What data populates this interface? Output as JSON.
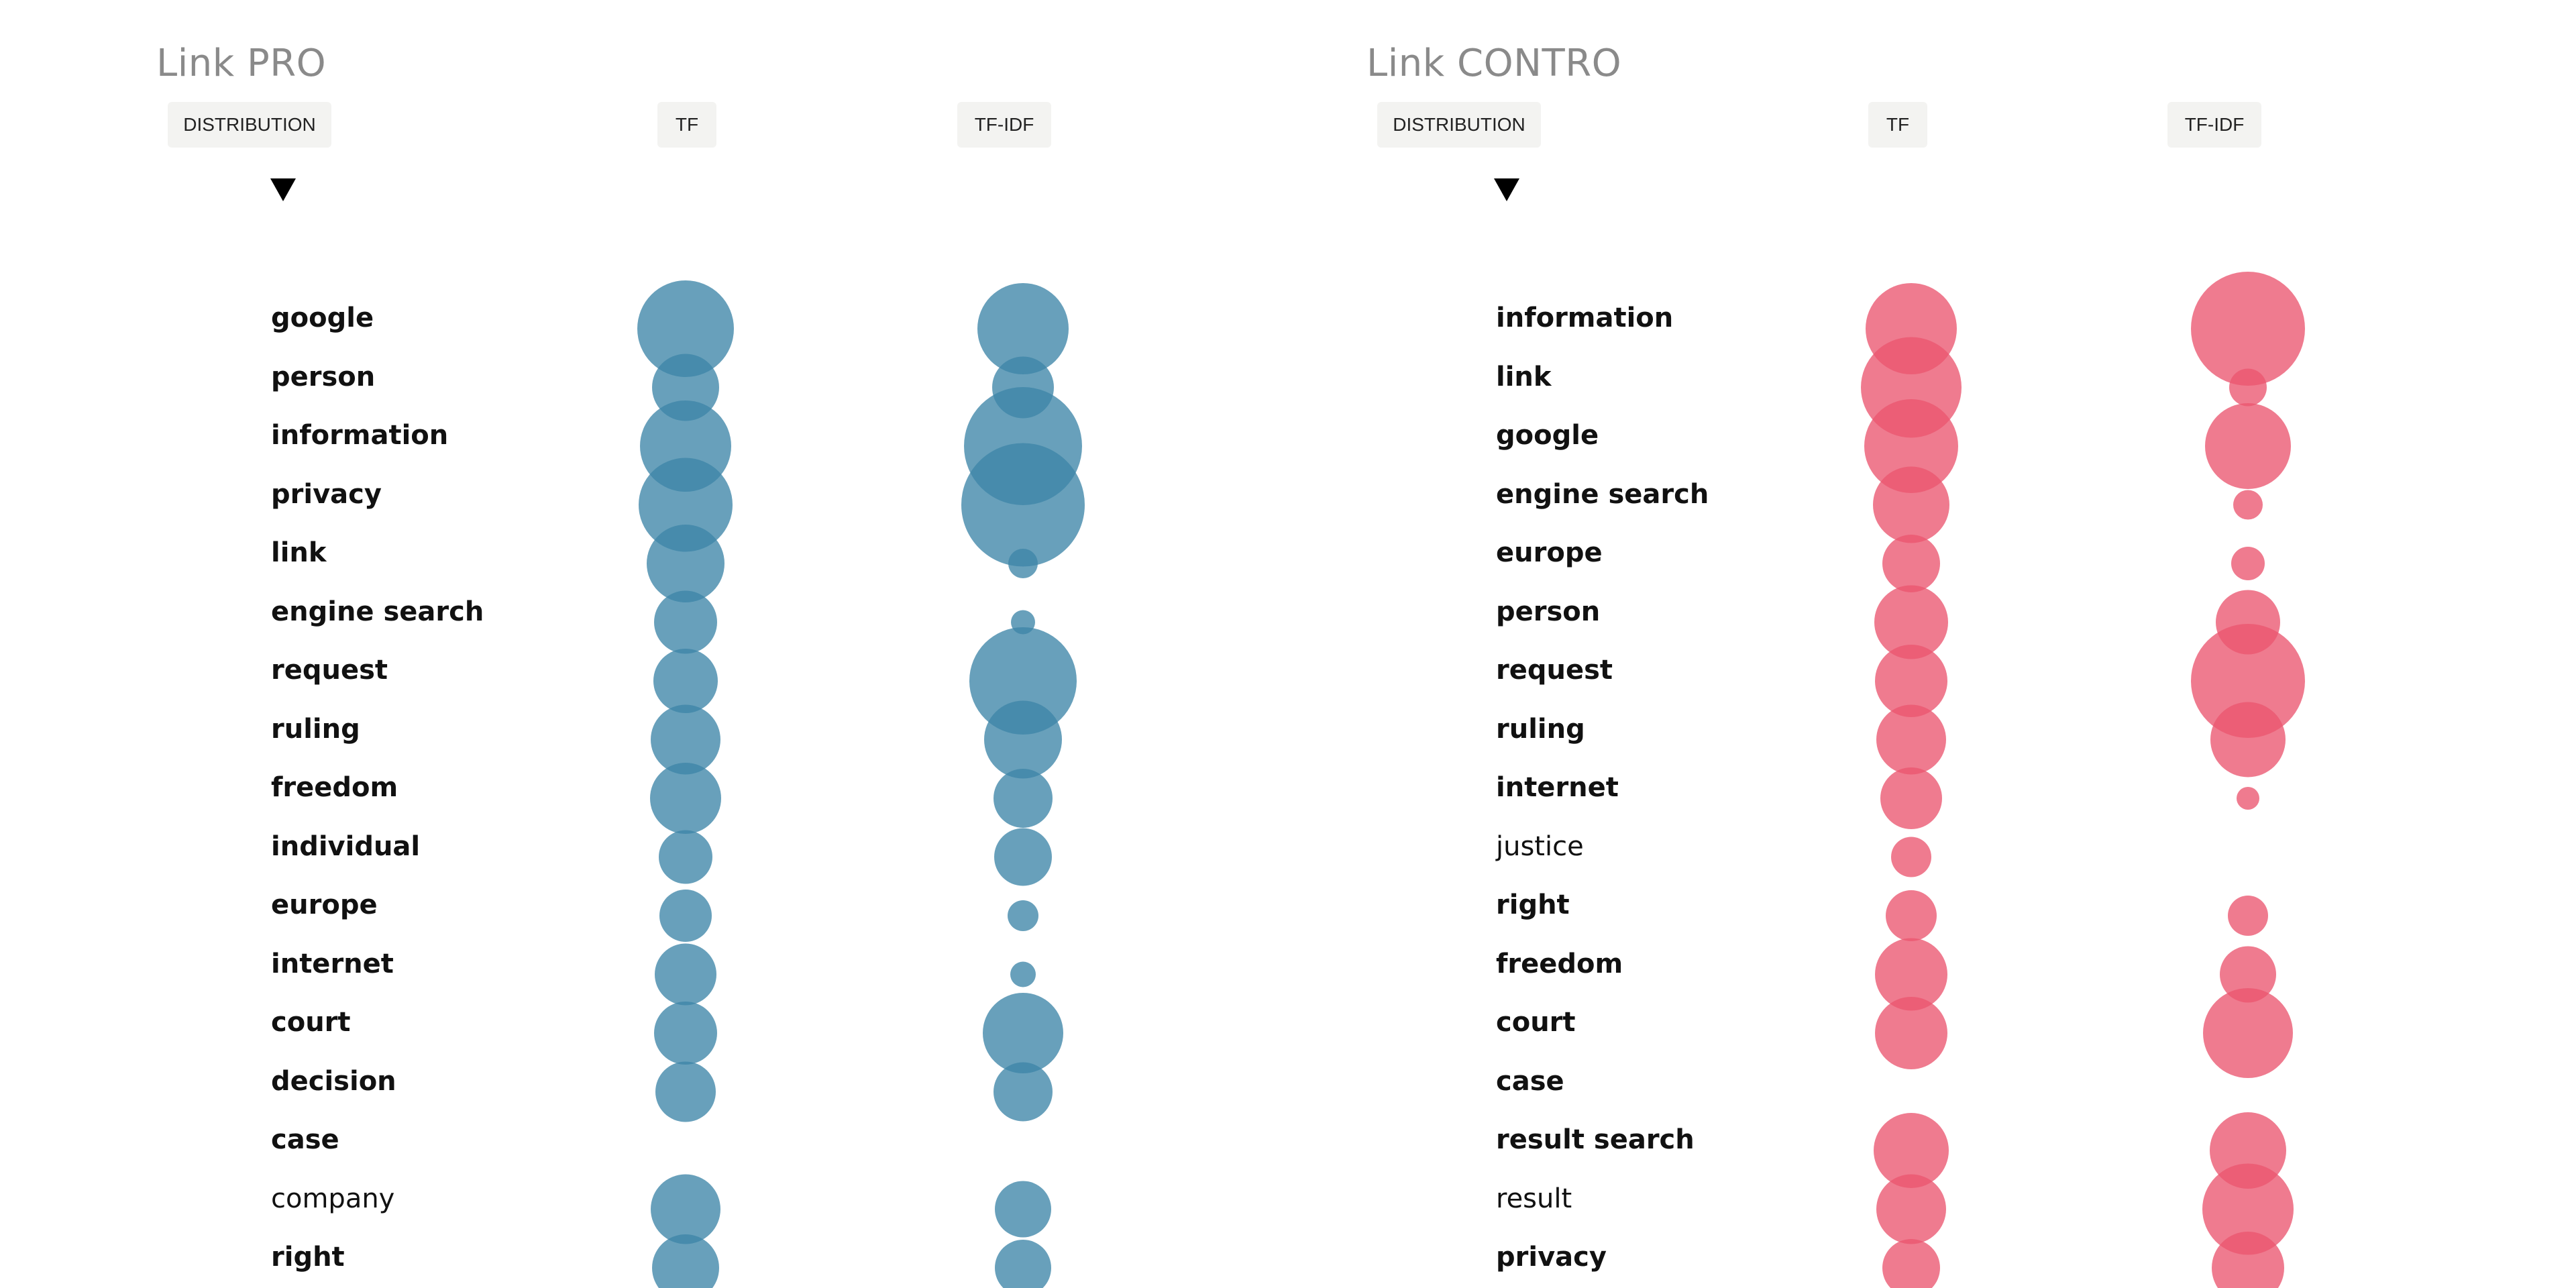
{
  "colors": {
    "pro": "#3d85a8",
    "contro": "#ea5670"
  },
  "chart_data": [
    {
      "type": "scatter",
      "title": "Link PRO",
      "controls": [
        "DISTRIBUTION",
        "TF",
        "TF-IDF"
      ],
      "columns": [
        "TF",
        "TF-IDF"
      ],
      "metric": "bubble radius",
      "rows": [
        {
          "word": "google",
          "bold": true,
          "tf": 72,
          "tfidf": 68
        },
        {
          "word": "person",
          "bold": true,
          "tf": 50,
          "tfidf": 46
        },
        {
          "word": "information",
          "bold": true,
          "tf": 68,
          "tfidf": 88
        },
        {
          "word": "privacy",
          "bold": true,
          "tf": 70,
          "tfidf": 92
        },
        {
          "word": "link",
          "bold": true,
          "tf": 58,
          "tfidf": 22
        },
        {
          "word": "engine search",
          "bold": true,
          "tf": 47,
          "tfidf": 18
        },
        {
          "word": "request",
          "bold": true,
          "tf": 48,
          "tfidf": 80
        },
        {
          "word": "ruling",
          "bold": true,
          "tf": 52,
          "tfidf": 58
        },
        {
          "word": "freedom",
          "bold": true,
          "tf": 53,
          "tfidf": 44
        },
        {
          "word": "individual",
          "bold": true,
          "tf": 40,
          "tfidf": 43
        },
        {
          "word": "europe",
          "bold": true,
          "tf": 39,
          "tfidf": 23
        },
        {
          "word": "internet",
          "bold": true,
          "tf": 46,
          "tfidf": 19
        },
        {
          "word": "court",
          "bold": true,
          "tf": 47,
          "tfidf": 60
        },
        {
          "word": "decision",
          "bold": true,
          "tf": 45,
          "tfidf": 44
        },
        {
          "word": "case",
          "bold": true,
          "tf": 0,
          "tfidf": 0
        },
        {
          "word": "company",
          "bold": false,
          "tf": 52,
          "tfidf": 42
        },
        {
          "word": "right",
          "bold": true,
          "tf": 50,
          "tfidf": 42
        }
      ]
    },
    {
      "type": "scatter",
      "title": "Link CONTRO",
      "controls": [
        "DISTRIBUTION",
        "TF",
        "TF-IDF"
      ],
      "columns": [
        "TF",
        "TF-IDF"
      ],
      "metric": "bubble radius",
      "rows": [
        {
          "word": "information",
          "bold": true,
          "tf": 68,
          "tfidf": 85
        },
        {
          "word": "link",
          "bold": true,
          "tf": 75,
          "tfidf": 28
        },
        {
          "word": "google",
          "bold": true,
          "tf": 70,
          "tfidf": 64
        },
        {
          "word": "engine search",
          "bold": true,
          "tf": 57,
          "tfidf": 22
        },
        {
          "word": "europe",
          "bold": true,
          "tf": 43,
          "tfidf": 25
        },
        {
          "word": "person",
          "bold": true,
          "tf": 55,
          "tfidf": 48
        },
        {
          "word": "request",
          "bold": true,
          "tf": 54,
          "tfidf": 85
        },
        {
          "word": "ruling",
          "bold": true,
          "tf": 52,
          "tfidf": 56
        },
        {
          "word": "internet",
          "bold": true,
          "tf": 46,
          "tfidf": 17
        },
        {
          "word": "justice",
          "bold": false,
          "tf": 30,
          "tfidf": 0
        },
        {
          "word": "right",
          "bold": true,
          "tf": 38,
          "tfidf": 30
        },
        {
          "word": "freedom",
          "bold": true,
          "tf": 54,
          "tfidf": 42
        },
        {
          "word": "court",
          "bold": true,
          "tf": 54,
          "tfidf": 67
        },
        {
          "word": "case",
          "bold": true,
          "tf": 0,
          "tfidf": 0
        },
        {
          "word": "result search",
          "bold": true,
          "tf": 56,
          "tfidf": 57
        },
        {
          "word": "result",
          "bold": false,
          "tf": 52,
          "tfidf": 68
        },
        {
          "word": "privacy",
          "bold": true,
          "tf": 43,
          "tfidf": 54
        }
      ]
    }
  ]
}
